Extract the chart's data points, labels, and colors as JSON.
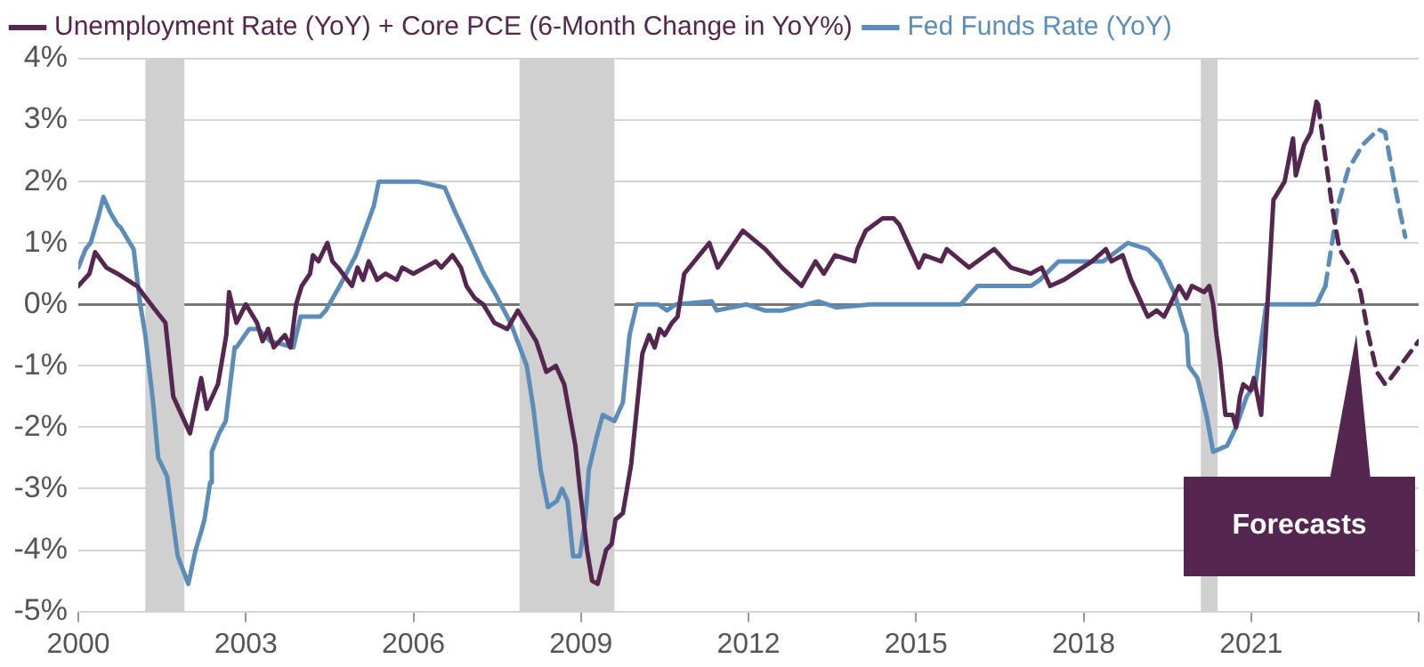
{
  "chart_data": {
    "type": "line",
    "xlim": [
      2000,
      2024
    ],
    "xticks": [
      2000,
      2003,
      2006,
      2009,
      2012,
      2015,
      2018,
      2021,
      {
        "value": 2024,
        "label": null
      }
    ],
    "ylim": [
      -5,
      4
    ],
    "yticks": [
      {
        "value": -5,
        "label": "-5%"
      },
      {
        "value": -4,
        "label": "-4%"
      },
      {
        "value": -3,
        "label": "-3%"
      },
      {
        "value": -2,
        "label": "-2%"
      },
      {
        "value": -1,
        "label": "-1%"
      },
      {
        "value": 0,
        "label": "0%"
      },
      {
        "value": 1,
        "label": "1%"
      },
      {
        "value": 2,
        "label": "2%"
      },
      {
        "value": 3,
        "label": "3%"
      },
      {
        "value": 4,
        "label": "4%"
      }
    ],
    "grid": "y",
    "legend": "top left",
    "marker": "none",
    "bands": [
      {
        "axis": "x",
        "from": 2001.2,
        "to": 2001.9,
        "color": "#d0d0d0"
      },
      {
        "axis": "x",
        "from": 2007.9,
        "to": 2009.6,
        "color": "#d0d0d0"
      },
      {
        "axis": "x",
        "from": 2020.1,
        "to": 2020.4,
        "color": "#d0d0d0"
      }
    ],
    "annotations": [
      "Forecasts"
    ],
    "series": [
      {
        "name": "Unemployment Rate (YoY) + Core PCE (6-Month Change in YoY%)",
        "color": "#55264f",
        "line_style": "solid",
        "x": [
          2000,
          2000.2,
          2000.3,
          2000.5,
          2000.7,
          2001.05,
          2001.3,
          2001.56,
          2001.7,
          2002,
          2002.2,
          2002.3,
          2002.5,
          2002.65,
          2002.7,
          2002.83,
          2003,
          2003.2,
          2003.3,
          2003.4,
          2003.5,
          2003.7,
          2003.8,
          2003.9,
          2004,
          2004.15,
          2004.2,
          2004.3,
          2004.46,
          2004.55,
          2004.65,
          2004.9,
          2005,
          2005.1,
          2005.2,
          2005.35,
          2005.5,
          2005.7,
          2005.8,
          2006,
          2006.2,
          2006.4,
          2006.5,
          2006.7,
          2006.85,
          2006.95,
          2007.1,
          2007.25,
          2007.45,
          2007.68,
          2007.87,
          2008.2,
          2008.38,
          2008.55,
          2008.7,
          2008.9,
          2008.98,
          2009.11,
          2009.2,
          2009.3,
          2009.45,
          2009.55,
          2009.62,
          2009.75,
          2009.9,
          2010,
          2010.1,
          2010.22,
          2010.32,
          2010.41,
          2010.5,
          2010.63,
          2010.73,
          2010.85,
          2011.3,
          2011.45,
          2011.9,
          2012.3,
          2012.6,
          2012.95,
          2013.2,
          2013.35,
          2013.55,
          2013.9,
          2013.95,
          2014.1,
          2014.4,
          2014.6,
          2014.7,
          2014.9,
          2015.05,
          2015.15,
          2015.45,
          2015.55,
          2015.95,
          2016.4,
          2016.7,
          2017.05,
          2017.25,
          2017.4,
          2017.65,
          2018.15,
          2018.4,
          2018.5,
          2018.7,
          2018.85,
          2019,
          2019.15,
          2019.31,
          2019.44,
          2019.55,
          2019.71,
          2019.84,
          2019.94,
          2020.16,
          2020.25,
          2020.32,
          2020.38,
          2020.44,
          2020.54,
          2020.67,
          2020.73,
          2020.8,
          2020.86,
          2020.99,
          2021.05,
          2021.18,
          2021.4,
          2021.6,
          2021.75,
          2021.8,
          2021.95,
          2022.07,
          2022.17,
          2022.2
        ],
        "values": [
          0.3,
          0.5,
          0.85,
          0.6,
          0.5,
          0.3,
          0,
          -0.3,
          -1.5,
          -2.1,
          -1.2,
          -1.7,
          -1.3,
          -0.5,
          0.2,
          -0.3,
          0,
          -0.3,
          -0.6,
          -0.4,
          -0.7,
          -0.5,
          -0.7,
          0,
          0.3,
          0.5,
          0.8,
          0.7,
          1,
          0.7,
          0.6,
          0.3,
          0.6,
          0.4,
          0.7,
          0.4,
          0.5,
          0.4,
          0.6,
          0.5,
          0.6,
          0.7,
          0.6,
          0.8,
          0.6,
          0.3,
          0.1,
          0,
          -0.3,
          -0.4,
          -0.1,
          -0.6,
          -1.1,
          -1,
          -1.3,
          -2.3,
          -3,
          -4,
          -4.5,
          -4.55,
          -4,
          -3.9,
          -3.5,
          -3.4,
          -2.6,
          -1.7,
          -0.8,
          -0.5,
          -0.7,
          -0.4,
          -0.5,
          -0.3,
          -0.2,
          0.5,
          1,
          0.6,
          1.2,
          0.9,
          0.6,
          0.3,
          0.7,
          0.5,
          0.8,
          0.7,
          0.9,
          1.2,
          1.4,
          1.4,
          1.3,
          0.9,
          0.6,
          0.8,
          0.7,
          0.9,
          0.6,
          0.9,
          0.6,
          0.5,
          0.6,
          0.3,
          0.4,
          0.7,
          0.9,
          0.7,
          0.8,
          0.4,
          0.1,
          -0.2,
          -0.1,
          -0.2,
          0,
          0.3,
          0.1,
          0.3,
          0.2,
          0.3,
          0,
          -0.5,
          -0.9,
          -1.8,
          -1.8,
          -2,
          -1.5,
          -1.3,
          -1.4,
          -1.2,
          -1.8,
          1.7,
          2,
          2.7,
          2.1,
          2.6,
          2.8,
          3.3,
          3.25
        ]
      },
      {
        "name": "Fed Funds Rate (YoY)",
        "color": "#5b8db8",
        "line_style": "solid",
        "x": [
          2000,
          2000.13,
          2000.22,
          2000.35,
          2000.45,
          2000.57,
          2000.7,
          2000.76,
          2000.89,
          2000.99,
          2001.11,
          2001.2,
          2001.34,
          2001.43,
          2001.59,
          2001.69,
          2001.78,
          2001.97,
          2002.1,
          2002.2,
          2002.26,
          2002.36,
          2002.39,
          2002.52,
          2002.64,
          2002.8,
          2002.83,
          2003.06,
          2003.22,
          2003.44,
          2003.85,
          2003.98,
          2004.33,
          2004.43,
          2004.68,
          2004.97,
          2005.13,
          2005.29,
          2005.38,
          2005.76,
          2006.08,
          2006.56,
          2006.75,
          2007.01,
          2007.26,
          2007.45,
          2007.74,
          2008.03,
          2008.15,
          2008.28,
          2008.41,
          2008.57,
          2008.66,
          2008.76,
          2008.86,
          2008.98,
          2009.08,
          2009.14,
          2009.27,
          2009.39,
          2009.6,
          2009.75,
          2009.87,
          2010,
          2010.38,
          2010.54,
          2010.7,
          2011.34,
          2011.43,
          2011.97,
          2012.29,
          2012.61,
          2013.25,
          2013.57,
          2014.2,
          2014.84,
          2015.8,
          2016.1,
          2016.42,
          2017.06,
          2017.22,
          2017.55,
          2018.35,
          2018.79,
          2019.14,
          2019.36,
          2019.62,
          2019.85,
          2019.88,
          2020.04,
          2020.2,
          2020.32,
          2020.57,
          2020.73,
          2020.92,
          2021.08,
          2021.27,
          2022.17,
          2022.33
        ],
        "values": [
          0.6,
          0.9,
          1,
          1.4,
          1.75,
          1.5,
          1.3,
          1.25,
          1.05,
          0.9,
          0,
          -0.5,
          -1.6,
          -2.5,
          -2.8,
          -3.5,
          -4.1,
          -4.55,
          -4,
          -3.7,
          -3.5,
          -2.9,
          -2.4,
          -2.1,
          -1.9,
          -0.7,
          -0.7,
          -0.4,
          -0.4,
          -0.6,
          -0.7,
          -0.2,
          -0.2,
          -0.1,
          0.3,
          0.8,
          1.2,
          1.6,
          2,
          2,
          2,
          1.9,
          1.5,
          1,
          0.5,
          0.2,
          -0.3,
          -1,
          -1.7,
          -2.7,
          -3.3,
          -3.2,
          -3,
          -3.2,
          -4.1,
          -4.1,
          -3.5,
          -2.7,
          -2.2,
          -1.8,
          -1.9,
          -1.6,
          -0.5,
          0,
          0,
          -0.1,
          0,
          0.05,
          -0.1,
          0,
          -0.1,
          -0.1,
          0.05,
          -0.05,
          0,
          0,
          0,
          0.3,
          0.3,
          0.3,
          0.4,
          0.7,
          0.7,
          1,
          0.9,
          0.7,
          0.2,
          -0.5,
          -1,
          -1.2,
          -1.8,
          -2.4,
          -2.3,
          -2,
          -1.5,
          -1.3,
          0,
          0,
          0.3
        ]
      },
      {
        "color": "#55264f",
        "line_style": "dashed",
        "x": [
          2022.2,
          2022.45,
          2022.58,
          2022.85,
          2022.96,
          2023.1,
          2023.25,
          2023.4,
          2023.5,
          2023.75,
          2024
        ],
        "values": [
          3.25,
          1.6,
          0.9,
          0.5,
          0.2,
          -0.5,
          -1.1,
          -1.3,
          -1.2,
          -0.9,
          -0.6
        ]
      },
      {
        "color": "#5b8db8",
        "line_style": "dashed",
        "x": [
          2022.33,
          2022.55,
          2022.74,
          2023,
          2023.28,
          2023.4,
          2023.6,
          2023.76
        ],
        "values": [
          0.3,
          1.6,
          2.2,
          2.6,
          2.85,
          2.8,
          1.8,
          1.1
        ]
      }
    ]
  }
}
